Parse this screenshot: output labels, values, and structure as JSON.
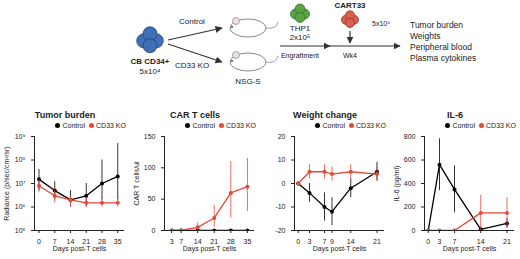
{
  "diagram": {
    "donor": {
      "label": "CB CD34+",
      "dose": "5x10⁴"
    },
    "arms": [
      "Control",
      "CD33 KO"
    ],
    "host": "NSG-S",
    "tumor": {
      "label": "THP1",
      "dose": "2x10⁵",
      "step": "Engraftment"
    },
    "treatment": {
      "label": "CART33",
      "dose": "5x10⁶",
      "time": "Wk4"
    },
    "readouts": [
      "Tumor burden",
      "Weights",
      "Peripheral blood",
      "Plasma cytokines"
    ]
  },
  "chart_data": [
    {
      "type": "line",
      "title": "Tumor burden",
      "xlabel": "Days post-T cells",
      "ylabel": "Radiance (p/sec/cm²/sr)",
      "log": "y",
      "legend": "top-right",
      "marker": "circle",
      "x": [
        0,
        7,
        14,
        21,
        28,
        35
      ],
      "xlim": [
        -2,
        38
      ],
      "xticks": [
        0,
        7,
        14,
        21,
        28,
        35
      ],
      "ylim": [
        100000,
        1000000000
      ],
      "yticks": [
        {
          "value": 100000,
          "label": "10⁵"
        },
        {
          "value": 1000000,
          "label": "10⁶"
        },
        {
          "value": 10000000,
          "label": "10⁷"
        },
        {
          "value": 100000000,
          "label": "10⁸"
        },
        {
          "value": 1000000000,
          "label": "10⁹"
        }
      ],
      "series": [
        {
          "name": "Control",
          "color": "#000000",
          "values": [
            15000000,
            5000000,
            2000000,
            3000000,
            10000000,
            20000000
          ],
          "error_low": [
            5000000,
            2000000,
            1000000,
            1000000,
            2000000,
            2000000
          ],
          "error_high": [
            40000000,
            12000000,
            5000000,
            10000000,
            100000000,
            500000000
          ]
        },
        {
          "name": "CD33 KO",
          "color": "#e8473a",
          "values": [
            8000000,
            3000000,
            2000000,
            1500000,
            1500000,
            1500000
          ],
          "error_low": [
            4000000,
            1500000,
            1000000,
            1000000,
            1000000,
            1000000
          ],
          "error_high": [
            15000000,
            6000000,
            3000000,
            2500000,
            2500000,
            2500000
          ]
        }
      ]
    },
    {
      "type": "line",
      "title": "CAR T cells",
      "xlabel": "Days post-T cells",
      "ylabel": "CAR T cells/ul",
      "legend": "top-right",
      "marker": "circle",
      "x": [
        3,
        7,
        14,
        21,
        28,
        35
      ],
      "xlim": [
        0,
        38
      ],
      "xticks": [
        3,
        7,
        14,
        21,
        28,
        35
      ],
      "ylim": [
        0,
        150
      ],
      "yticks": [
        0,
        50,
        100,
        150
      ],
      "series": [
        {
          "name": "Control",
          "color": "#000000",
          "values": [
            0,
            0,
            0,
            0,
            0,
            0
          ],
          "error_low": [
            0,
            0,
            0,
            0,
            0,
            0
          ],
          "error_high": [
            0,
            0,
            0,
            0,
            0,
            0
          ]
        },
        {
          "name": "CD33 KO",
          "color": "#e8473a",
          "values": [
            0,
            0,
            5,
            20,
            60,
            70
          ],
          "error_low": [
            0,
            0,
            0,
            5,
            20,
            30
          ],
          "error_high": [
            0,
            2,
            12,
            40,
            110,
            115
          ]
        }
      ]
    },
    {
      "type": "line",
      "title": "Weight change",
      "xlabel": "Days post-T cells",
      "legend": "top-right",
      "marker": "circle",
      "x": [
        0,
        3,
        7,
        9,
        14,
        21
      ],
      "xlim": [
        -1,
        23
      ],
      "xticks": [
        0,
        3,
        7,
        9,
        14,
        21
      ],
      "ylim": [
        -20,
        20
      ],
      "yticks": [
        -20,
        -10,
        0,
        10,
        20
      ],
      "series": [
        {
          "name": "Control",
          "color": "#000000",
          "values": [
            0,
            -4,
            -10,
            -12,
            -2,
            5
          ],
          "error_low": [
            0,
            -8,
            -16,
            -18,
            -6,
            1
          ],
          "error_high": [
            0,
            0,
            -4,
            -6,
            2,
            9
          ]
        },
        {
          "name": "CD33 KO",
          "color": "#e8473a",
          "values": [
            0,
            5,
            5,
            4,
            5,
            4
          ],
          "error_low": [
            0,
            2,
            2,
            1,
            2,
            1
          ],
          "error_high": [
            0,
            8,
            8,
            7,
            8,
            7
          ]
        }
      ]
    },
    {
      "type": "line",
      "title": "IL-6",
      "xlabel": "Days post-T cells",
      "ylabel": "IL-6 (pg/ml)",
      "legend": "top-right",
      "marker": "circle",
      "x": [
        0,
        3,
        7,
        14,
        21
      ],
      "xlim": [
        -1,
        23
      ],
      "xticks": [
        0,
        3,
        7,
        14,
        21
      ],
      "ylim": [
        0,
        800
      ],
      "yticks": [
        0,
        200,
        400,
        600,
        800
      ],
      "series": [
        {
          "name": "Control",
          "color": "#000000",
          "values": [
            0,
            560,
            350,
            10,
            60
          ],
          "error_low": [
            0,
            340,
            150,
            0,
            20
          ],
          "error_high": [
            0,
            780,
            550,
            30,
            100
          ]
        },
        {
          "name": "CD33 KO",
          "color": "#e8473a",
          "values": [
            0,
            0,
            0,
            150,
            150
          ],
          "error_low": [
            0,
            0,
            0,
            0,
            20
          ],
          "error_high": [
            0,
            0,
            0,
            300,
            280
          ]
        }
      ]
    }
  ]
}
